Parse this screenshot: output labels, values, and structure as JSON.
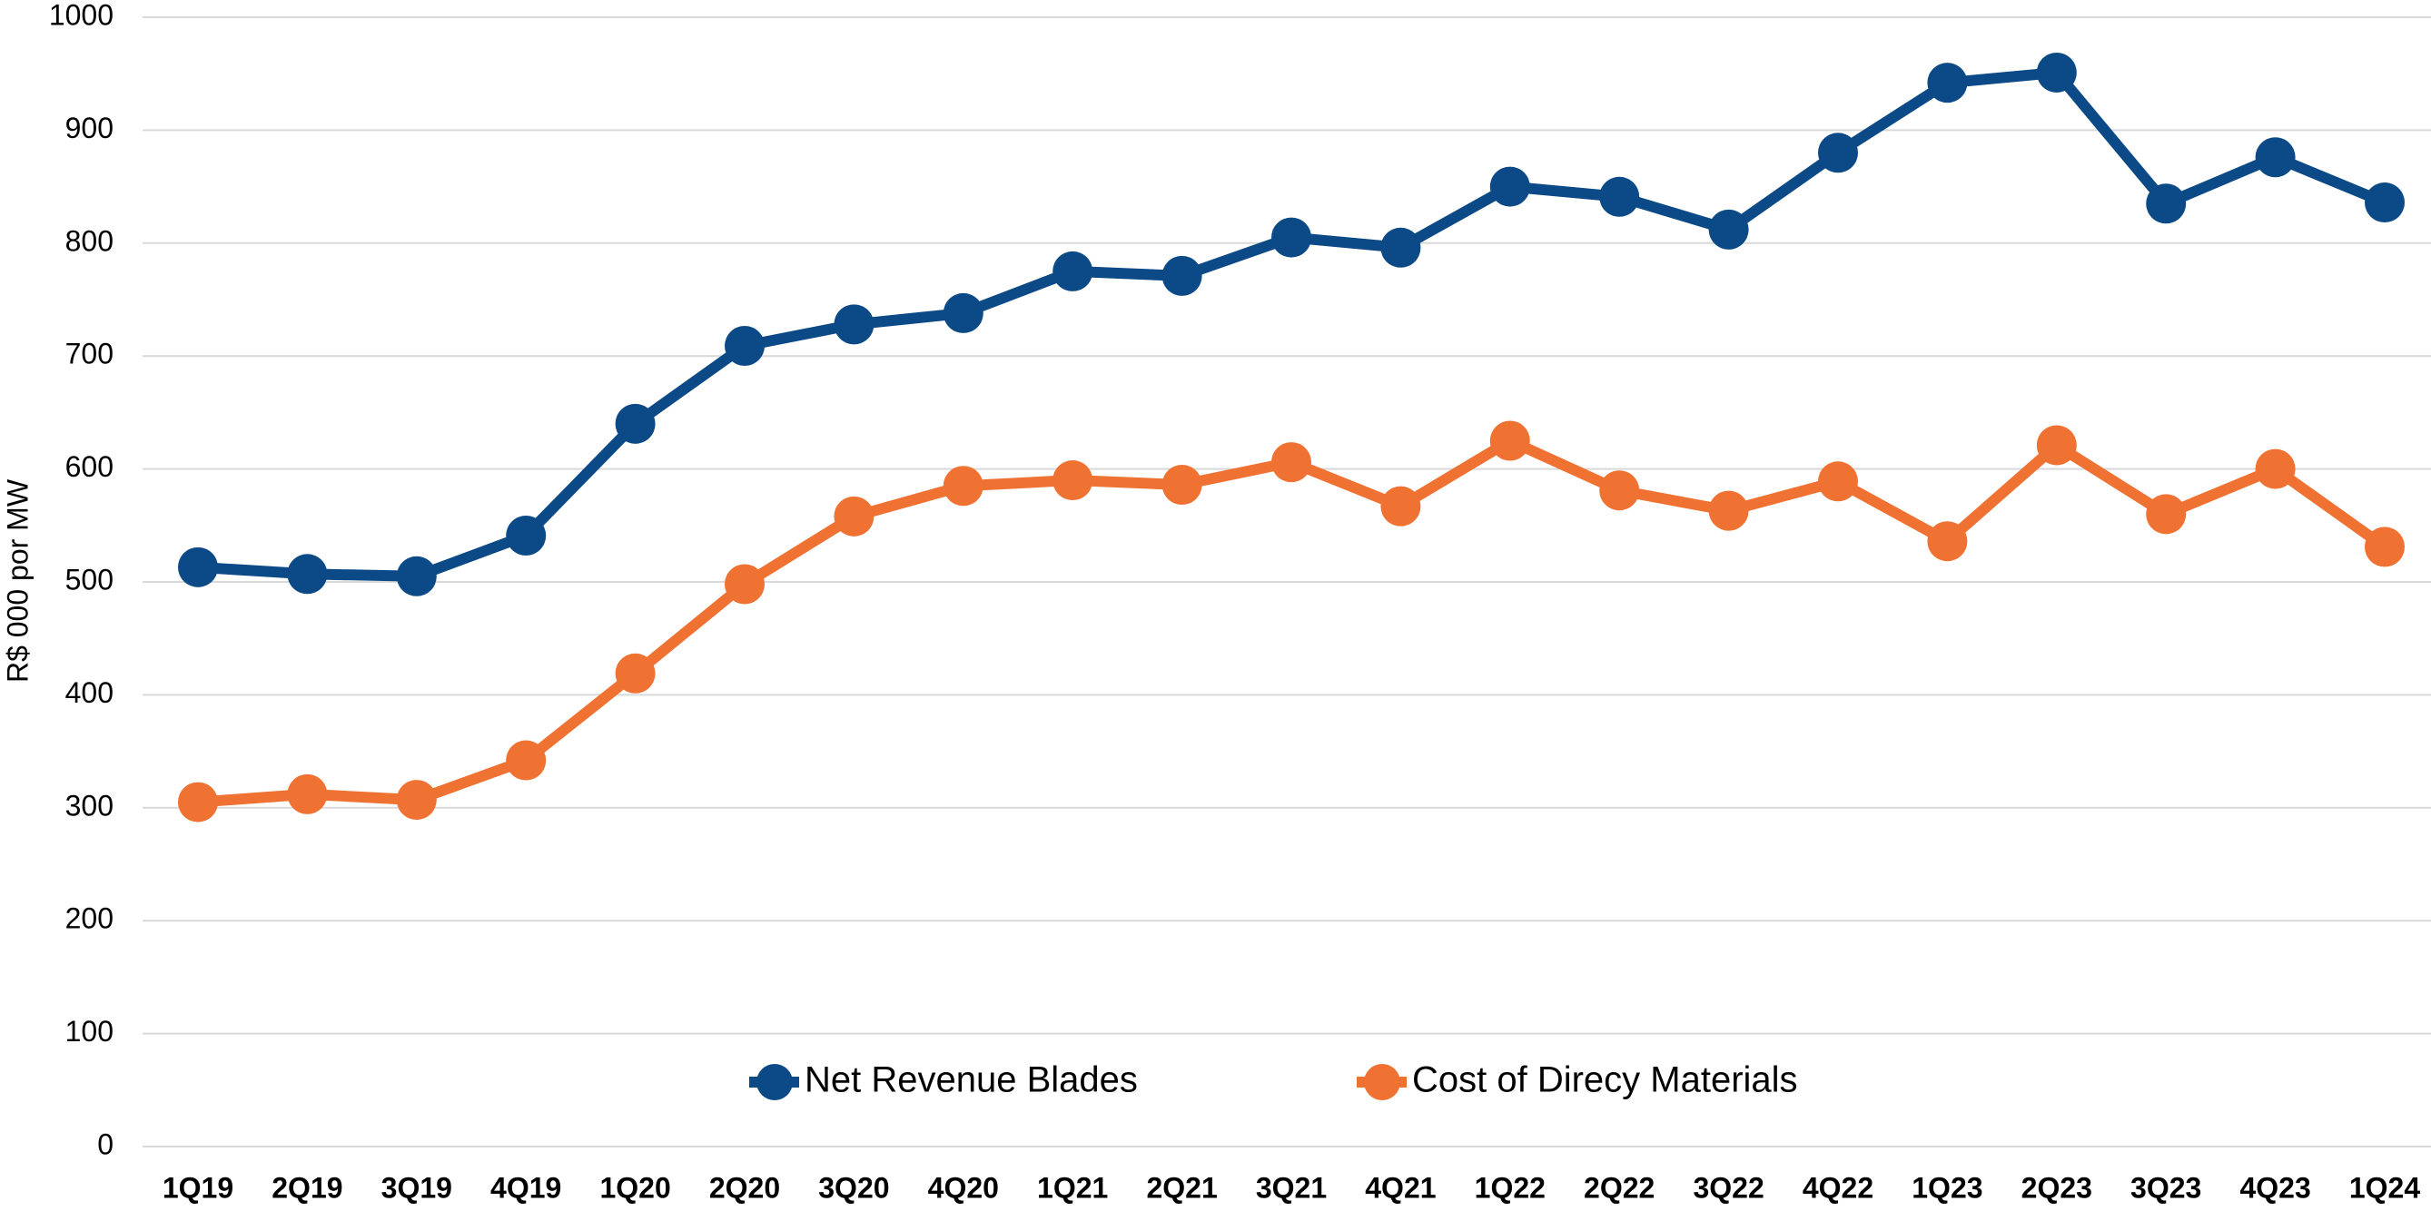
{
  "chart_data": {
    "type": "line",
    "y_label": "R$ 000 por MW",
    "categories": [
      "1Q19",
      "2Q19",
      "3Q19",
      "4Q19",
      "1Q20",
      "2Q20",
      "3Q20",
      "4Q20",
      "1Q21",
      "2Q21",
      "3Q21",
      "4Q21",
      "1Q22",
      "2Q22",
      "3Q22",
      "4Q22",
      "1Q23",
      "2Q23",
      "3Q23",
      "4Q23",
      "1Q24"
    ],
    "series": [
      {
        "name": "Net Revenue Blades",
        "color": "#0b4a87",
        "values": [
          513,
          507,
          505,
          541,
          640,
          709,
          728,
          738,
          775,
          771,
          805,
          796,
          850,
          841,
          812,
          880,
          942,
          951,
          835,
          876,
          836
        ]
      },
      {
        "name": "Cost of Direcy Materials",
        "color": "#f07233",
        "values": [
          305,
          312,
          307,
          342,
          419,
          498,
          558,
          585,
          590,
          586,
          606,
          567,
          625,
          581,
          563,
          589,
          536,
          621,
          560,
          600,
          531
        ]
      }
    ],
    "ylim": [
      0,
      1000
    ],
    "yticks": [
      0,
      100,
      200,
      300,
      400,
      500,
      600,
      700,
      800,
      900,
      1000
    ],
    "grid": true,
    "legend": "bottom"
  }
}
